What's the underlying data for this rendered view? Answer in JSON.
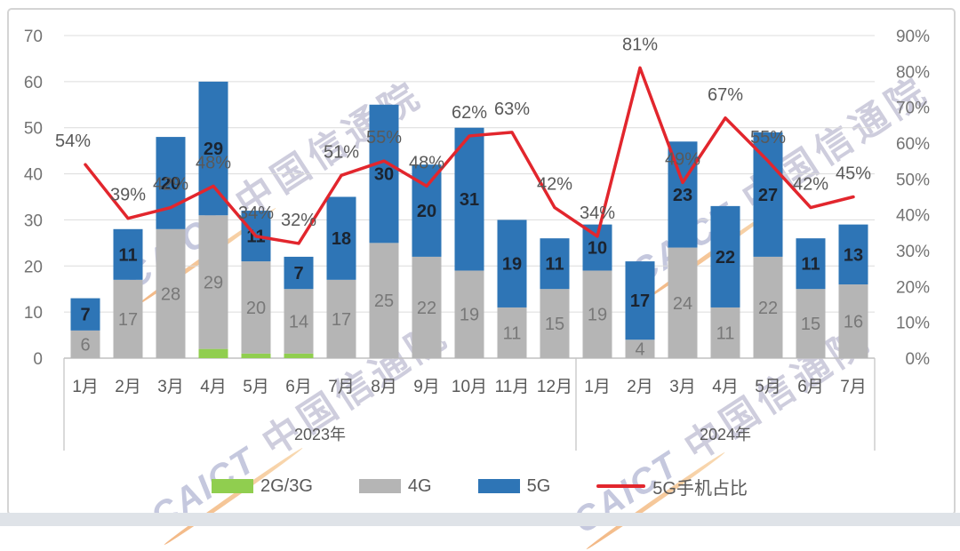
{
  "watermark": {
    "caict": "CAICT",
    "cn": "中国信通院"
  },
  "legend": {
    "items": [
      {
        "label": "2G/3G",
        "swatch": "#90ce4f",
        "type": "box"
      },
      {
        "label": "4G",
        "swatch": "#b5b5b5",
        "type": "box"
      },
      {
        "label": "5G",
        "swatch": "#2e75b6",
        "type": "box"
      },
      {
        "label": "5G手机占比",
        "swatch": "#e2262d",
        "type": "line"
      }
    ]
  },
  "chart_data": {
    "type": "bar",
    "stacked": true,
    "categories": [
      "1月",
      "2月",
      "3月",
      "4月",
      "5月",
      "6月",
      "7月",
      "8月",
      "9月",
      "10月",
      "11月",
      "12月",
      "1月",
      "2月",
      "3月",
      "4月",
      "5月",
      "6月",
      "7月"
    ],
    "year_groups": [
      {
        "label": "2023年",
        "count": 12
      },
      {
        "label": "2024年",
        "count": 7
      }
    ],
    "series": [
      {
        "name": "2G/3G",
        "color": "#90ce4f",
        "values": [
          0,
          0,
          0,
          2,
          1,
          1,
          0,
          0,
          0,
          0,
          0,
          0,
          0,
          0,
          0,
          0,
          0,
          0,
          0
        ],
        "show_labels": false,
        "label_color": "",
        "label_bold": false
      },
      {
        "name": "4G",
        "color": "#b5b5b5",
        "values": [
          6,
          17,
          28,
          29,
          20,
          14,
          17,
          25,
          22,
          19,
          11,
          15,
          19,
          4,
          24,
          11,
          22,
          15,
          16
        ],
        "show_labels": true,
        "label_color": "#787878",
        "label_bold": false
      },
      {
        "name": "5G",
        "color": "#2e75b6",
        "values": [
          7,
          11,
          20,
          29,
          11,
          7,
          18,
          30,
          20,
          31,
          19,
          11,
          10,
          17,
          23,
          22,
          27,
          11,
          13
        ],
        "show_labels": true,
        "label_color": "#1b2430",
        "label_bold": true
      }
    ],
    "line": {
      "name": "5G手机占比",
      "color": "#e2262d",
      "values": [
        54,
        39,
        42,
        48,
        34,
        32,
        51,
        55,
        48,
        62,
        63,
        42,
        34,
        81,
        49,
        67,
        55,
        42,
        45
      ],
      "label_suffix": "%",
      "axis": "right"
    },
    "left_axis": {
      "min": 0,
      "max": 70,
      "step": 10
    },
    "right_axis": {
      "min": 0,
      "max": 90,
      "step": 10,
      "suffix": "%"
    },
    "grid": true,
    "legend_position": "bottom"
  }
}
